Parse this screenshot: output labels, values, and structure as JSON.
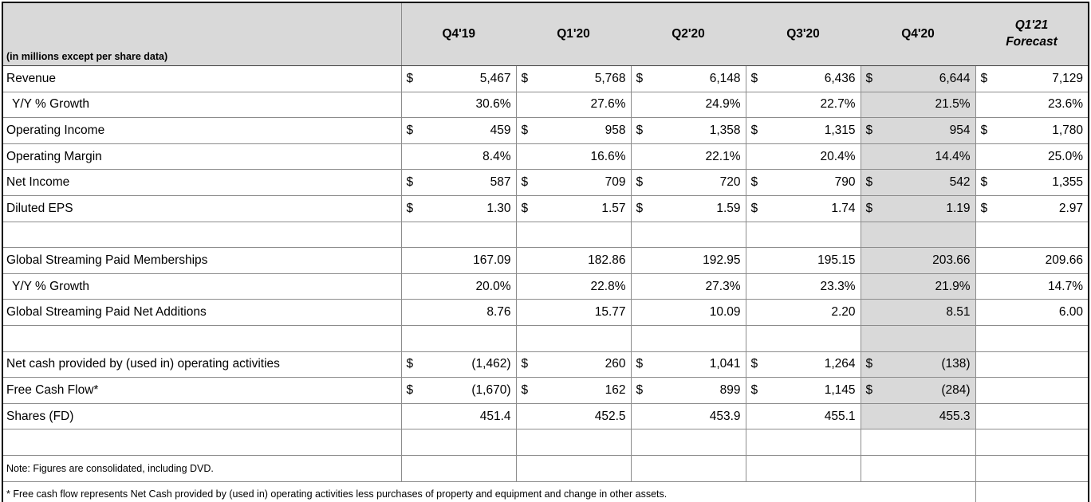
{
  "table": {
    "unit_note": "(in millions except per share data)",
    "currency": "$",
    "columns": [
      "Q4'19",
      "Q1'20",
      "Q2'20",
      "Q3'20",
      "Q4'20"
    ],
    "forecast_col": {
      "line1": "Q1'21",
      "line2": "Forecast"
    },
    "highlight_column": "Q4'20",
    "colors": {
      "header_bg": "#d9d9d9",
      "highlight_bg": "#d9d9d9",
      "grid": "#8c8c8c",
      "outer_border": "#000000",
      "text": "#000000"
    },
    "rows": [
      {
        "label": "Revenue",
        "type": "money",
        "hl": true,
        "cells": [
          "5,467",
          "5,768",
          "6,148",
          "6,436",
          "6,644",
          "7,129"
        ]
      },
      {
        "label": "Y/Y % Growth",
        "type": "plain",
        "indent": true,
        "hl": true,
        "cells": [
          "30.6%",
          "27.6%",
          "24.9%",
          "22.7%",
          "21.5%",
          "23.6%"
        ]
      },
      {
        "label": "Operating Income",
        "type": "money",
        "hl": true,
        "cells": [
          "459",
          "958",
          "1,358",
          "1,315",
          "954",
          "1,780"
        ]
      },
      {
        "label": "Operating Margin",
        "type": "plain",
        "hl": true,
        "cells": [
          "8.4%",
          "16.6%",
          "22.1%",
          "20.4%",
          "14.4%",
          "25.0%"
        ]
      },
      {
        "label": "Net Income",
        "type": "money",
        "hl": true,
        "cells": [
          "587",
          "709",
          "720",
          "790",
          "542",
          "1,355"
        ]
      },
      {
        "label": "Diluted EPS",
        "type": "money",
        "hl": true,
        "cells": [
          "1.30",
          "1.57",
          "1.59",
          "1.74",
          "1.19",
          "2.97"
        ]
      },
      {
        "label": "",
        "type": "blank",
        "hl": true,
        "cells": [
          "",
          "",
          "",
          "",
          "",
          ""
        ]
      },
      {
        "label": "Global Streaming Paid Memberships",
        "type": "plain",
        "hl": true,
        "cells": [
          "167.09",
          "182.86",
          "192.95",
          "195.15",
          "203.66",
          "209.66"
        ]
      },
      {
        "label": "Y/Y % Growth",
        "type": "plain",
        "indent": true,
        "hl": true,
        "cells": [
          "20.0%",
          "22.8%",
          "27.3%",
          "23.3%",
          "21.9%",
          "14.7%"
        ]
      },
      {
        "label": "Global Streaming Paid Net Additions",
        "type": "plain",
        "hl": true,
        "cells": [
          "8.76",
          "15.77",
          "10.09",
          "2.20",
          "8.51",
          "6.00"
        ]
      },
      {
        "label": "",
        "type": "blank",
        "hl": true,
        "cells": [
          "",
          "",
          "",
          "",
          "",
          ""
        ]
      },
      {
        "label": "Net cash provided by (used in) operating activities",
        "type": "money",
        "hl": true,
        "cells": [
          "(1,462)",
          "260",
          "1,041",
          "1,264",
          "(138)",
          ""
        ]
      },
      {
        "label": "Free Cash Flow*",
        "type": "money",
        "hl": true,
        "cells": [
          "(1,670)",
          "162",
          "899",
          "1,145",
          "(284)",
          ""
        ]
      },
      {
        "label": "Shares (FD)",
        "type": "plain",
        "hl": true,
        "cells": [
          "451.4",
          "452.5",
          "453.9",
          "455.1",
          "455.3",
          ""
        ]
      },
      {
        "label": "",
        "type": "blank",
        "hl": false,
        "cells": [
          "",
          "",
          "",
          "",
          "",
          ""
        ]
      },
      {
        "label": "Note: Figures are consolidated, including DVD.",
        "type": "note",
        "hl": false,
        "cells": [
          "",
          "",
          "",
          "",
          "",
          ""
        ]
      },
      {
        "label": "* Free cash flow represents Net Cash provided by (used in) operating activities less purchases of property and equipment and change in other assets.",
        "type": "footnote",
        "hl": false
      }
    ]
  }
}
